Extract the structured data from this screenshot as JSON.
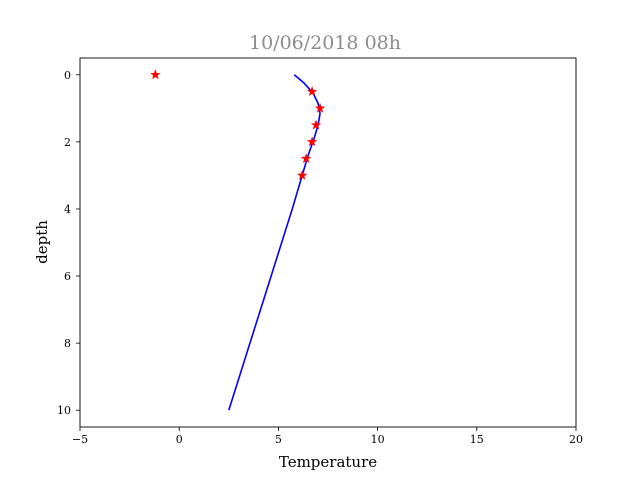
{
  "chart_data": {
    "type": "line",
    "title": "10/06/2018 08h",
    "xlabel": "Temperature",
    "ylabel": "depth",
    "xlim": [
      -5,
      20
    ],
    "ylim": [
      10.5,
      -0.5
    ],
    "y_inverted": true,
    "grid": false,
    "legend": "none",
    "x_ticks": [
      -5,
      0,
      5,
      10,
      15,
      20
    ],
    "y_ticks": [
      0,
      2,
      4,
      6,
      8,
      10
    ],
    "x_tick_labels": [
      "−5",
      "0",
      "5",
      "10",
      "15",
      "20"
    ],
    "y_tick_labels": [
      "0",
      "2",
      "4",
      "6",
      "8",
      "10"
    ],
    "series": [
      {
        "kind": "line",
        "color": "#0000ff",
        "points": [
          {
            "x": 5.8,
            "y": 0.0
          },
          {
            "x": 6.3,
            "y": 0.25
          },
          {
            "x": 6.75,
            "y": 0.55
          },
          {
            "x": 7.0,
            "y": 0.85
          },
          {
            "x": 7.1,
            "y": 1.15
          },
          {
            "x": 7.0,
            "y": 1.5
          },
          {
            "x": 6.8,
            "y": 1.9
          },
          {
            "x": 6.5,
            "y": 2.4
          },
          {
            "x": 6.2,
            "y": 3.0
          },
          {
            "x": 5.7,
            "y": 4.0
          },
          {
            "x": 4.9,
            "y": 5.5
          },
          {
            "x": 4.1,
            "y": 7.0
          },
          {
            "x": 3.3,
            "y": 8.5
          },
          {
            "x": 2.5,
            "y": 10.0
          }
        ]
      },
      {
        "kind": "scatter",
        "marker": "star",
        "color": "#ff0000",
        "points": [
          {
            "x": -1.2,
            "y": 0.0
          },
          {
            "x": 6.7,
            "y": 0.5
          },
          {
            "x": 7.1,
            "y": 1.0
          },
          {
            "x": 6.9,
            "y": 1.5
          },
          {
            "x": 6.7,
            "y": 2.0
          },
          {
            "x": 6.4,
            "y": 2.5
          },
          {
            "x": 6.2,
            "y": 3.0
          }
        ]
      }
    ]
  }
}
